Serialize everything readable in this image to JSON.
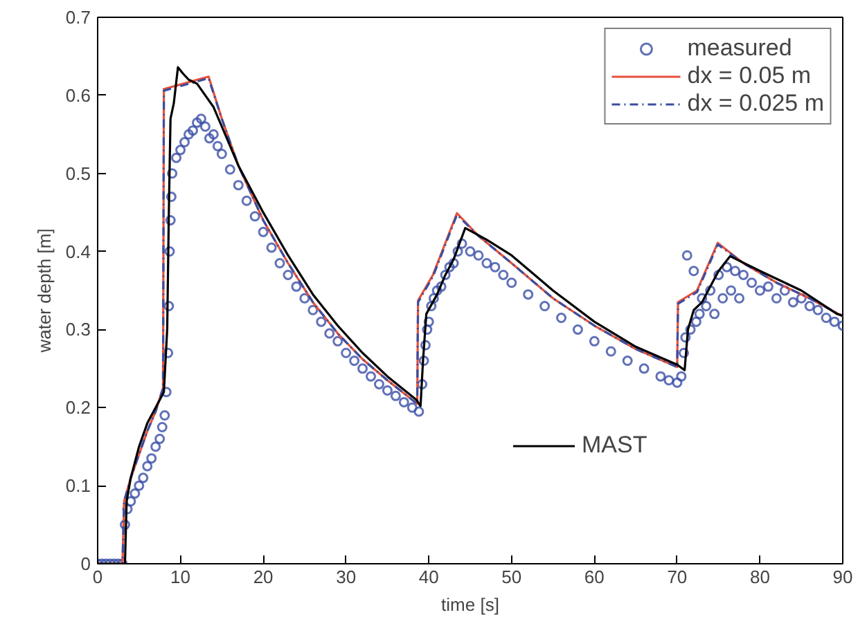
{
  "chart_data": {
    "type": "line",
    "xlabel": "time [s]",
    "ylabel": "water depth [m]",
    "xlim": [
      0,
      90
    ],
    "ylim": [
      0,
      0.7
    ],
    "xticks": [
      0,
      10,
      20,
      30,
      40,
      50,
      60,
      70,
      80,
      90
    ],
    "yticks": [
      0,
      0.1,
      0.2,
      0.3,
      0.4,
      0.5,
      0.6,
      0.7
    ],
    "grid": false,
    "legend": "top right",
    "series": [
      {
        "name": "measured",
        "type": "scatter",
        "marker": "circle",
        "color": "#3a4ea6",
        "x": [
          0,
          0.5,
          1,
          1.5,
          2,
          2.5,
          3,
          3.3,
          3.6,
          4,
          4.5,
          5,
          5.5,
          6,
          6.5,
          7,
          7.5,
          7.8,
          8.1,
          8.3,
          8.5,
          8.6,
          8.7,
          8.8,
          8.9,
          9,
          9.5,
          10,
          10.5,
          11,
          11.5,
          12,
          12.5,
          13,
          13.5,
          14,
          14.5,
          15,
          16,
          17,
          18,
          19,
          20,
          21,
          22,
          23,
          24,
          25,
          26,
          27,
          28,
          29,
          30,
          31,
          32,
          33,
          34,
          35,
          36,
          37,
          38,
          38.8,
          39.2,
          39.4,
          39.6,
          39.8,
          40,
          40.3,
          40.6,
          41,
          41.5,
          42,
          42.5,
          43,
          43.5,
          44,
          45,
          46,
          47,
          48,
          49,
          50,
          52,
          54,
          56,
          58,
          60,
          62,
          64,
          66,
          68,
          69,
          70,
          70.5,
          70.8,
          71,
          71.2,
          71.6,
          72,
          72.3,
          72.7,
          73,
          73.5,
          74,
          74.5,
          75,
          75.5,
          76,
          76.5,
          77,
          77.5,
          78,
          79,
          80,
          81,
          82,
          83,
          84,
          85,
          86,
          87,
          88,
          89,
          90
        ],
        "values": [
          0,
          0,
          0,
          0,
          0,
          0,
          0,
          0.05,
          0.07,
          0.08,
          0.09,
          0.1,
          0.11,
          0.125,
          0.135,
          0.15,
          0.16,
          0.175,
          0.19,
          0.22,
          0.27,
          0.33,
          0.4,
          0.44,
          0.47,
          0.5,
          0.52,
          0.53,
          0.54,
          0.55,
          0.555,
          0.565,
          0.57,
          0.56,
          0.545,
          0.55,
          0.535,
          0.525,
          0.505,
          0.485,
          0.465,
          0.445,
          0.425,
          0.405,
          0.385,
          0.37,
          0.355,
          0.34,
          0.325,
          0.31,
          0.295,
          0.285,
          0.27,
          0.26,
          0.25,
          0.24,
          0.23,
          0.222,
          0.215,
          0.207,
          0.2,
          0.195,
          0.23,
          0.26,
          0.28,
          0.3,
          0.31,
          0.33,
          0.34,
          0.35,
          0.355,
          0.37,
          0.38,
          0.385,
          0.4,
          0.41,
          0.4,
          0.395,
          0.385,
          0.38,
          0.37,
          0.36,
          0.345,
          0.33,
          0.315,
          0.3,
          0.285,
          0.272,
          0.26,
          0.25,
          0.24,
          0.235,
          0.232,
          0.24,
          0.27,
          0.29,
          0.395,
          0.3,
          0.375,
          0.31,
          0.32,
          0.34,
          0.33,
          0.35,
          0.32,
          0.37,
          0.34,
          0.38,
          0.35,
          0.375,
          0.34,
          0.37,
          0.36,
          0.35,
          0.355,
          0.34,
          0.35,
          0.335,
          0.34,
          0.33,
          0.325,
          0.315,
          0.31,
          0.305
        ]
      },
      {
        "name": "dx = 0.05 m",
        "color": "#e8503a",
        "line_style": "solid",
        "x": [
          0,
          3,
          3.2,
          4,
          5,
          6,
          7,
          7.9,
          8.0,
          13.4,
          15,
          17,
          20,
          23,
          26,
          29,
          32,
          35,
          38.6,
          38.7,
          40.5,
          43.4,
          46,
          50,
          55,
          60,
          65,
          70,
          70.1,
          72.4,
          74.9,
          78,
          82,
          86,
          90
        ],
        "values": [
          0,
          0,
          0.08,
          0.11,
          0.14,
          0.17,
          0.195,
          0.225,
          0.608,
          0.624,
          0.57,
          0.51,
          0.44,
          0.385,
          0.335,
          0.295,
          0.262,
          0.235,
          0.205,
          0.337,
          0.37,
          0.449,
          0.42,
          0.385,
          0.34,
          0.305,
          0.275,
          0.252,
          0.335,
          0.35,
          0.411,
          0.385,
          0.36,
          0.34,
          0.317
        ]
      },
      {
        "name": "dx = 0.025 m",
        "color": "#3a4ea0",
        "line_style": "dashed",
        "x": [
          0,
          3,
          3.2,
          4,
          5,
          6,
          7,
          7.9,
          8.0,
          13.4,
          15,
          17,
          20,
          23,
          26,
          29,
          32,
          35,
          38.6,
          38.7,
          40.5,
          43.4,
          46,
          50,
          55,
          60,
          65,
          70,
          70.1,
          72.4,
          74.9,
          78,
          82,
          86,
          90
        ],
        "values": [
          0,
          0,
          0.08,
          0.11,
          0.14,
          0.17,
          0.195,
          0.225,
          0.606,
          0.622,
          0.57,
          0.51,
          0.44,
          0.385,
          0.335,
          0.295,
          0.262,
          0.235,
          0.205,
          0.335,
          0.368,
          0.447,
          0.42,
          0.385,
          0.34,
          0.305,
          0.275,
          0.252,
          0.333,
          0.348,
          0.409,
          0.385,
          0.36,
          0.34,
          0.317
        ]
      },
      {
        "name": "MAST",
        "color": "#000000",
        "line_style": "solid",
        "x": [
          0,
          3.3,
          3.5,
          4,
          5,
          6,
          7,
          8,
          8.4,
          8.6,
          8.8,
          9.2,
          9.7,
          10.3,
          11,
          12,
          13,
          14,
          15,
          17,
          20,
          23,
          26,
          29,
          32,
          35,
          38.5,
          39.0,
          39.3,
          39.7,
          41,
          42,
          43,
          44.4,
          47,
          50,
          55,
          60,
          65,
          70,
          70.9,
          71.3,
          72,
          73,
          74,
          75,
          76.4,
          80,
          85,
          89.3,
          90
        ],
        "values": [
          0,
          0,
          0.08,
          0.11,
          0.15,
          0.18,
          0.2,
          0.22,
          0.3,
          0.45,
          0.57,
          0.59,
          0.636,
          0.628,
          0.62,
          0.615,
          0.6,
          0.585,
          0.56,
          0.51,
          0.45,
          0.395,
          0.345,
          0.305,
          0.27,
          0.24,
          0.21,
          0.202,
          0.26,
          0.32,
          0.345,
          0.37,
          0.39,
          0.43,
          0.415,
          0.395,
          0.35,
          0.31,
          0.278,
          0.255,
          0.248,
          0.3,
          0.325,
          0.335,
          0.355,
          0.375,
          0.394,
          0.375,
          0.35,
          0.32,
          0.318
        ]
      }
    ]
  }
}
